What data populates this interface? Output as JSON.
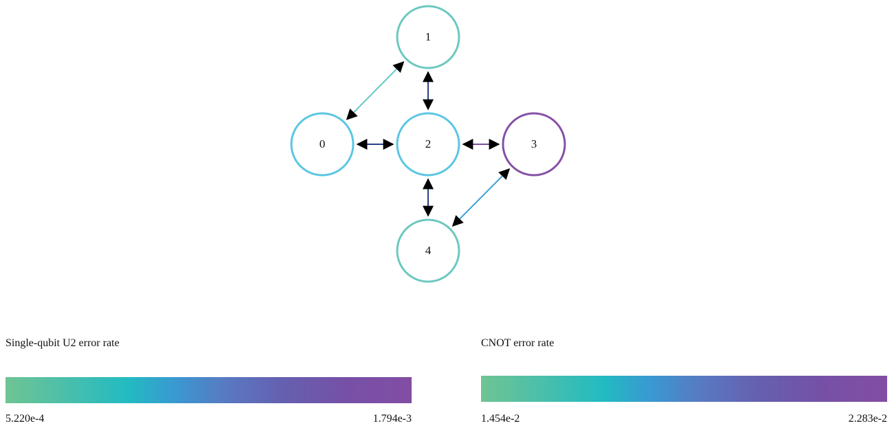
{
  "colors": {
    "qubit_low": "#6cc8bf",
    "qubit_mid": "#5bc6e3",
    "qubit_high": "#8650a6",
    "edge_dark": "#2c3f86",
    "edge_purple": "#7a4fa0",
    "edge_teal": "#62c7c4",
    "edge_blue": "#3aa0d6",
    "arrowhead": "#000000"
  },
  "graph": {
    "nodes": [
      {
        "id": "0",
        "label": "0",
        "color": "#5bc6e3"
      },
      {
        "id": "1",
        "label": "1",
        "color": "#6cc8bf"
      },
      {
        "id": "2",
        "label": "2",
        "color": "#5bc6e3"
      },
      {
        "id": "3",
        "label": "3",
        "color": "#8650a6"
      },
      {
        "id": "4",
        "label": "4",
        "color": "#6cc8bf"
      }
    ],
    "edges": [
      {
        "from": "0",
        "to": "1",
        "color": "#62c7c4"
      },
      {
        "from": "1",
        "to": "2",
        "color": "#2c3f86"
      },
      {
        "from": "0",
        "to": "2",
        "color": "#2c3f86"
      },
      {
        "from": "2",
        "to": "3",
        "color": "#7a4fa0"
      },
      {
        "from": "2",
        "to": "4",
        "color": "#2c3f86"
      },
      {
        "from": "4",
        "to": "3",
        "color": "#3aa0d6"
      }
    ]
  },
  "legend_u2": {
    "title": "Single-qubit U2 error rate",
    "min": "5.220e-4",
    "max": "1.794e-3"
  },
  "legend_cnot": {
    "title": "CNOT error rate",
    "min": "1.454e-2",
    "max": "2.283e-2"
  }
}
